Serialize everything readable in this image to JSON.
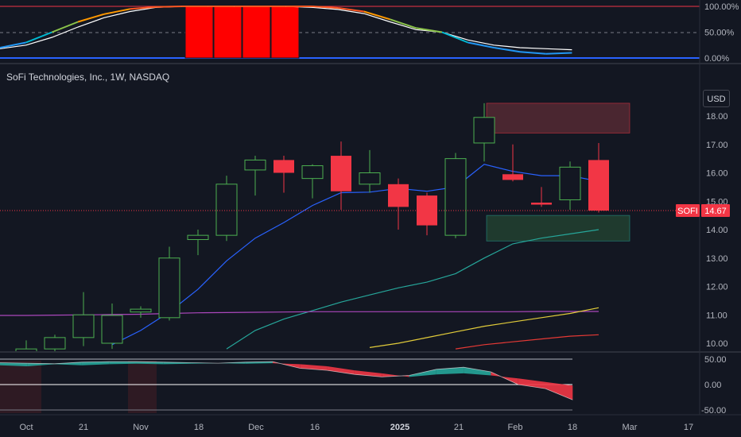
{
  "chart_data": [
    {
      "type": "candlestick",
      "title": "SoFi Technologies, Inc., 1W, NASDAQ",
      "symbol": "SOFI",
      "last_price": "14.67",
      "currency": "USD",
      "x_ticks": [
        "Oct",
        "21",
        "Nov",
        "18",
        "Dec",
        "16",
        "2025",
        "21",
        "Feb",
        "18",
        "Mar",
        "17"
      ],
      "y_ticks": [
        "10.00",
        "11.00",
        "12.00",
        "13.00",
        "14.00",
        "15.00",
        "16.00",
        "17.00",
        "18.00"
      ],
      "ylim": [
        9.8,
        18.9
      ],
      "candles": [
        {
          "o": 9.45,
          "h": 10.1,
          "l": 9.3,
          "c": 9.8
        },
        {
          "o": 9.8,
          "h": 10.3,
          "l": 9.6,
          "c": 10.2
        },
        {
          "o": 10.2,
          "h": 11.8,
          "l": 9.9,
          "c": 11.0
        },
        {
          "o": 10.0,
          "h": 11.4,
          "l": 9.8,
          "c": 10.98
        },
        {
          "o": 11.1,
          "h": 11.3,
          "l": 10.9,
          "c": 11.2
        },
        {
          "o": 10.9,
          "h": 13.4,
          "l": 10.8,
          "c": 13.0
        },
        {
          "o": 13.65,
          "h": 14.0,
          "l": 13.1,
          "c": 13.8
        },
        {
          "o": 13.8,
          "h": 15.9,
          "l": 13.6,
          "c": 15.6
        },
        {
          "o": 16.1,
          "h": 16.6,
          "l": 15.2,
          "c": 16.45
        },
        {
          "o": 16.45,
          "h": 16.6,
          "l": 15.3,
          "c": 16.0
        },
        {
          "o": 15.8,
          "h": 16.3,
          "l": 15.1,
          "c": 16.25
        },
        {
          "o": 16.6,
          "h": 17.1,
          "l": 14.7,
          "c": 15.35
        },
        {
          "o": 15.6,
          "h": 16.8,
          "l": 15.3,
          "c": 16.0
        },
        {
          "o": 15.6,
          "h": 15.8,
          "l": 14.0,
          "c": 14.8
        },
        {
          "o": 15.2,
          "h": 15.3,
          "l": 13.8,
          "c": 14.15
        },
        {
          "o": 13.8,
          "h": 16.7,
          "l": 13.7,
          "c": 16.5
        },
        {
          "o": 17.05,
          "h": 18.45,
          "l": 16.4,
          "c": 17.95
        },
        {
          "o": 15.95,
          "h": 17.0,
          "l": 15.7,
          "c": 15.75
        },
        {
          "o": 14.95,
          "h": 15.5,
          "l": 14.8,
          "c": 14.88
        },
        {
          "o": 15.05,
          "h": 16.4,
          "l": 14.7,
          "c": 16.2
        },
        {
          "o": 16.45,
          "h": 17.05,
          "l": 14.6,
          "c": 14.67
        }
      ],
      "moving_averages": [
        {
          "color": "#2962ff",
          "values": [
            null,
            null,
            null,
            9.95,
            10.45,
            11.1,
            11.9,
            12.9,
            13.7,
            14.25,
            14.85,
            15.3,
            15.32,
            15.45,
            15.35,
            15.5,
            16.3,
            16.05,
            15.9,
            15.9,
            15.7
          ]
        },
        {
          "color": "#26a69a",
          "values": [
            null,
            null,
            null,
            null,
            null,
            null,
            null,
            9.8,
            10.45,
            10.85,
            11.15,
            11.45,
            11.7,
            11.95,
            12.15,
            12.45,
            13.0,
            13.5,
            13.7,
            13.85,
            14.0
          ]
        },
        {
          "color": "#ab47bc",
          "values": [
            10.98,
            10.99,
            11.0,
            11.01,
            11.02,
            11.05,
            11.07,
            11.08,
            11.09,
            11.1,
            11.11,
            11.11,
            11.11,
            11.11,
            11.11,
            11.11,
            11.11,
            11.11,
            11.12,
            11.12,
            11.12
          ]
        },
        {
          "color": "#e2cc3a",
          "values": [
            null,
            null,
            null,
            null,
            null,
            null,
            null,
            null,
            null,
            null,
            null,
            null,
            9.85,
            10.0,
            10.2,
            10.4,
            10.6,
            10.75,
            10.9,
            11.05,
            11.25
          ]
        },
        {
          "color": "#e53935",
          "values": [
            null,
            null,
            null,
            null,
            null,
            null,
            null,
            null,
            null,
            null,
            null,
            null,
            null,
            null,
            null,
            9.8,
            9.95,
            10.05,
            10.15,
            10.25,
            10.3
          ]
        }
      ],
      "zones": [
        {
          "kind": "resistance",
          "low": 17.4,
          "high": 18.45
        },
        {
          "kind": "support",
          "low": 13.6,
          "high": 14.5
        }
      ]
    },
    {
      "type": "line",
      "panel": "top-oscillator",
      "y_ticks": [
        "100.00%",
        "50.00%",
        "0.00%"
      ],
      "ylim": [
        -5,
        105
      ],
      "signal_values": [
        18,
        25,
        40,
        60,
        78,
        90,
        98,
        100,
        100,
        100,
        100,
        100,
        98,
        94,
        86,
        70,
        55,
        50,
        35,
        25,
        20,
        18,
        16
      ],
      "main_values": [
        20,
        30,
        50,
        70,
        85,
        95,
        99,
        100,
        100,
        100,
        100,
        100,
        100,
        97,
        90,
        75,
        58,
        50,
        30,
        20,
        12,
        8,
        10
      ],
      "overbought_bars": [
        6,
        7,
        8,
        9
      ]
    },
    {
      "type": "area",
      "panel": "bottom-oscillator",
      "y_ticks": [
        "50.00",
        "0.00",
        "-50.00"
      ],
      "ylim": [
        -70,
        70
      ],
      "fast": [
        43,
        42,
        41,
        44,
        45,
        45,
        44,
        43,
        42,
        44,
        45,
        32,
        28,
        20,
        15,
        18,
        30,
        34,
        25,
        0,
        -8,
        -30
      ],
      "slow": [
        38,
        36,
        40,
        38,
        40,
        41,
        40,
        41,
        42,
        41,
        42,
        40,
        36,
        28,
        22,
        15,
        20,
        22,
        18,
        12,
        5,
        -2
      ]
    }
  ]
}
